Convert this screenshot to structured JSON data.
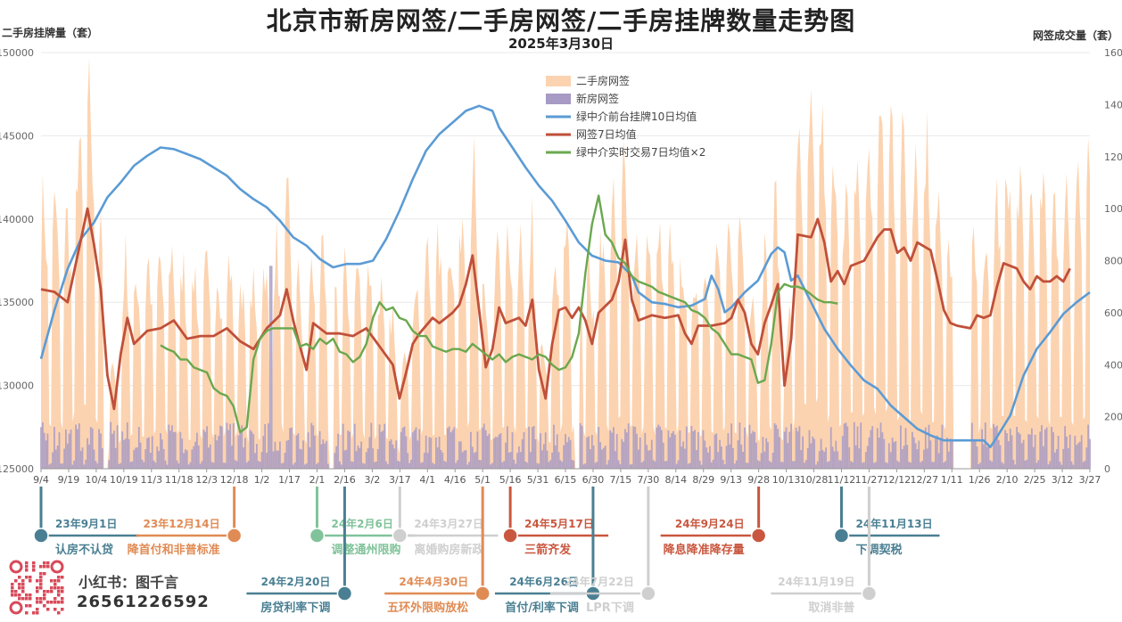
{
  "title": "北京市新房网签/二手房网签/二手房挂牌数量走势图",
  "subtitle": "2025年3月30日",
  "brand": "小红书：图千言",
  "phone": "26561226592",
  "chart_data": {
    "type": "bar",
    "ylabel_left": "二手房挂牌量（套）",
    "ylabel_right": "网签成交量（套）",
    "ylim_left": [
      125000,
      150000
    ],
    "ylim_right": [
      0,
      1600
    ],
    "yticks_left": [
      "125000",
      "130000",
      "135000",
      "140000",
      "145000",
      "150000"
    ],
    "yticks_right": [
      "0",
      "200",
      "400",
      "600",
      "800",
      "1000",
      "1200",
      "1400",
      "1600"
    ],
    "xticks": [
      "9/4",
      "9/19",
      "10/4",
      "10/19",
      "11/3",
      "11/18",
      "12/3",
      "12/18",
      "1/2",
      "1/17",
      "2/1",
      "2/16",
      "3/2",
      "3/17",
      "4/1",
      "4/16",
      "5/1",
      "5/16",
      "5/31",
      "6/15",
      "6/30",
      "7/15",
      "7/30",
      "8/14",
      "8/29",
      "9/13",
      "9/28",
      "10/13",
      "10/28",
      "11/12",
      "11/27",
      "12/12",
      "12/27",
      "1/11",
      "1/26",
      "2/10",
      "2/25",
      "3/12",
      "3/27"
    ],
    "legend": [
      {
        "name": "二手房网签",
        "color": "#fcd3b0",
        "kind": "area"
      },
      {
        "name": "新房网签",
        "color": "#a79ac4",
        "kind": "bar"
      },
      {
        "name": "绿中介前台挂牌10日均值",
        "color": "#5b9bd5",
        "kind": "line"
      },
      {
        "name": "网签7日均值",
        "color": "#c0503a",
        "kind": "line"
      },
      {
        "name": "绿中介实时交易7日均值×2",
        "color": "#6aa84f",
        "kind": "line"
      }
    ],
    "listing_10d_avg": [
      [
        0,
        131600
      ],
      [
        2,
        134500
      ],
      [
        4,
        137000
      ],
      [
        6,
        138800
      ],
      [
        8,
        139800
      ],
      [
        10,
        141300
      ],
      [
        12,
        142200
      ],
      [
        14,
        143200
      ],
      [
        16,
        143800
      ],
      [
        18,
        144300
      ],
      [
        20,
        144200
      ],
      [
        22,
        143900
      ],
      [
        24,
        143600
      ],
      [
        26,
        143100
      ],
      [
        28,
        142600
      ],
      [
        30,
        141800
      ],
      [
        32,
        141200
      ],
      [
        34,
        140700
      ],
      [
        36,
        139900
      ],
      [
        38,
        138900
      ],
      [
        40,
        138400
      ],
      [
        42,
        137600
      ],
      [
        44,
        137100
      ],
      [
        46,
        137300
      ],
      [
        48,
        137300
      ],
      [
        50,
        137500
      ],
      [
        52,
        138800
      ],
      [
        54,
        140500
      ],
      [
        56,
        142400
      ],
      [
        58,
        144100
      ],
      [
        60,
        145100
      ],
      [
        62,
        145800
      ],
      [
        64,
        146500
      ],
      [
        66,
        146800
      ],
      [
        68,
        146500
      ],
      [
        69,
        145500
      ],
      [
        71,
        144300
      ],
      [
        73,
        143100
      ],
      [
        75,
        142000
      ],
      [
        77,
        141100
      ],
      [
        79,
        139900
      ],
      [
        81,
        138600
      ],
      [
        83,
        137800
      ],
      [
        85,
        137500
      ],
      [
        87,
        137400
      ],
      [
        89,
        136600
      ],
      [
        90,
        135600
      ],
      [
        92,
        135000
      ],
      [
        94,
        134900
      ],
      [
        96,
        134700
      ],
      [
        98,
        134800
      ],
      [
        100,
        135200
      ],
      [
        101,
        136600
      ],
      [
        102,
        135800
      ],
      [
        103,
        134400
      ],
      [
        104,
        134700
      ],
      [
        106,
        135600
      ],
      [
        108,
        136300
      ],
      [
        110,
        137900
      ],
      [
        111,
        138300
      ],
      [
        112,
        138000
      ],
      [
        113,
        136300
      ],
      [
        114,
        136600
      ],
      [
        116,
        135000
      ],
      [
        118,
        133400
      ],
      [
        120,
        132200
      ],
      [
        122,
        131200
      ],
      [
        124,
        130300
      ],
      [
        126,
        129800
      ],
      [
        128,
        128800
      ],
      [
        130,
        128100
      ],
      [
        132,
        127400
      ],
      [
        134,
        127000
      ],
      [
        136,
        126700
      ],
      [
        138,
        126700
      ],
      [
        140,
        126700
      ],
      [
        142,
        126700
      ],
      [
        143,
        126300
      ],
      [
        144,
        126900
      ],
      [
        146,
        128200
      ],
      [
        148,
        130600
      ],
      [
        150,
        132200
      ],
      [
        152,
        133200
      ],
      [
        154,
        134300
      ],
      [
        156,
        135000
      ],
      [
        158,
        135600
      ]
    ],
    "signing_7d_avg": [
      [
        0,
        690
      ],
      [
        2,
        680
      ],
      [
        4,
        640
      ],
      [
        6,
        880
      ],
      [
        7,
        1000
      ],
      [
        8,
        860
      ],
      [
        9,
        690
      ],
      [
        10,
        360
      ],
      [
        11,
        230
      ],
      [
        12,
        440
      ],
      [
        13,
        580
      ],
      [
        14,
        480
      ],
      [
        16,
        530
      ],
      [
        18,
        540
      ],
      [
        20,
        570
      ],
      [
        22,
        500
      ],
      [
        24,
        510
      ],
      [
        26,
        510
      ],
      [
        28,
        540
      ],
      [
        30,
        490
      ],
      [
        32,
        460
      ],
      [
        34,
        540
      ],
      [
        36,
        590
      ],
      [
        37,
        690
      ],
      [
        38,
        570
      ],
      [
        39,
        470
      ],
      [
        40,
        380
      ],
      [
        41,
        560
      ],
      [
        43,
        520
      ],
      [
        45,
        520
      ],
      [
        47,
        510
      ],
      [
        49,
        540
      ],
      [
        51,
        470
      ],
      [
        53,
        400
      ],
      [
        54,
        270
      ],
      [
        55,
        370
      ],
      [
        56,
        480
      ],
      [
        57,
        520
      ],
      [
        59,
        580
      ],
      [
        60,
        560
      ],
      [
        62,
        600
      ],
      [
        63,
        630
      ],
      [
        64,
        710
      ],
      [
        65,
        820
      ],
      [
        66,
        610
      ],
      [
        67,
        390
      ],
      [
        68,
        460
      ],
      [
        69,
        620
      ],
      [
        70,
        560
      ],
      [
        72,
        580
      ],
      [
        73,
        550
      ],
      [
        74,
        650
      ],
      [
        75,
        380
      ],
      [
        76,
        270
      ],
      [
        77,
        480
      ],
      [
        78,
        610
      ],
      [
        79,
        620
      ],
      [
        80,
        580
      ],
      [
        81,
        620
      ],
      [
        82,
        570
      ],
      [
        83,
        480
      ],
      [
        84,
        600
      ],
      [
        86,
        650
      ],
      [
        87,
        720
      ],
      [
        88,
        880
      ],
      [
        89,
        650
      ],
      [
        90,
        570
      ],
      [
        92,
        590
      ],
      [
        94,
        580
      ],
      [
        96,
        590
      ],
      [
        97,
        520
      ],
      [
        98,
        480
      ],
      [
        99,
        550
      ],
      [
        101,
        550
      ],
      [
        103,
        560
      ],
      [
        104,
        580
      ],
      [
        105,
        650
      ],
      [
        106,
        600
      ],
      [
        107,
        480
      ],
      [
        108,
        440
      ],
      [
        109,
        560
      ],
      [
        110,
        630
      ],
      [
        111,
        710
      ],
      [
        112,
        320
      ],
      [
        113,
        500
      ],
      [
        114,
        900
      ],
      [
        116,
        890
      ],
      [
        117,
        960
      ],
      [
        118,
        870
      ],
      [
        119,
        720
      ],
      [
        120,
        760
      ],
      [
        121,
        710
      ],
      [
        122,
        780
      ],
      [
        124,
        800
      ],
      [
        126,
        890
      ],
      [
        127,
        920
      ],
      [
        128,
        920
      ],
      [
        129,
        830
      ],
      [
        130,
        850
      ],
      [
        131,
        800
      ],
      [
        132,
        870
      ],
      [
        134,
        840
      ],
      [
        135,
        730
      ],
      [
        136,
        610
      ],
      [
        137,
        560
      ],
      [
        138,
        550
      ],
      [
        140,
        540
      ],
      [
        141,
        590
      ],
      [
        142,
        580
      ],
      [
        143,
        590
      ],
      [
        144,
        700
      ],
      [
        145,
        790
      ],
      [
        146,
        780
      ],
      [
        147,
        770
      ],
      [
        148,
        720
      ],
      [
        149,
        690
      ],
      [
        150,
        740
      ],
      [
        151,
        720
      ],
      [
        152,
        720
      ],
      [
        153,
        740
      ],
      [
        154,
        720
      ],
      [
        155,
        770
      ]
    ],
    "green_7d_avg_x2": [
      [
        18,
        475
      ],
      [
        19,
        460
      ],
      [
        20,
        450
      ],
      [
        21,
        420
      ],
      [
        22,
        420
      ],
      [
        23,
        390
      ],
      [
        24,
        380
      ],
      [
        25,
        370
      ],
      [
        26,
        310
      ],
      [
        27,
        290
      ],
      [
        28,
        280
      ],
      [
        29,
        240
      ],
      [
        30,
        140
      ],
      [
        31,
        160
      ],
      [
        32,
        420
      ],
      [
        33,
        500
      ],
      [
        34,
        530
      ],
      [
        35,
        540
      ],
      [
        36,
        540
      ],
      [
        37,
        540
      ],
      [
        38,
        540
      ],
      [
        39,
        470
      ],
      [
        40,
        480
      ],
      [
        41,
        460
      ],
      [
        42,
        500
      ],
      [
        43,
        480
      ],
      [
        44,
        500
      ],
      [
        45,
        450
      ],
      [
        46,
        440
      ],
      [
        47,
        410
      ],
      [
        48,
        430
      ],
      [
        49,
        480
      ],
      [
        50,
        580
      ],
      [
        51,
        640
      ],
      [
        52,
        610
      ],
      [
        53,
        620
      ],
      [
        54,
        580
      ],
      [
        55,
        570
      ],
      [
        56,
        530
      ],
      [
        57,
        510
      ],
      [
        58,
        510
      ],
      [
        59,
        470
      ],
      [
        60,
        460
      ],
      [
        61,
        450
      ],
      [
        62,
        460
      ],
      [
        63,
        460
      ],
      [
        64,
        450
      ],
      [
        65,
        480
      ],
      [
        66,
        460
      ],
      [
        67,
        440
      ],
      [
        68,
        420
      ],
      [
        69,
        440
      ],
      [
        70,
        410
      ],
      [
        71,
        430
      ],
      [
        72,
        440
      ],
      [
        73,
        430
      ],
      [
        74,
        420
      ],
      [
        75,
        440
      ],
      [
        76,
        430
      ],
      [
        77,
        400
      ],
      [
        78,
        380
      ],
      [
        79,
        390
      ],
      [
        80,
        430
      ],
      [
        81,
        520
      ],
      [
        82,
        750
      ],
      [
        83,
        940
      ],
      [
        84,
        1050
      ],
      [
        85,
        900
      ],
      [
        86,
        870
      ],
      [
        87,
        810
      ],
      [
        88,
        790
      ],
      [
        89,
        740
      ],
      [
        90,
        720
      ],
      [
        91,
        710
      ],
      [
        92,
        700
      ],
      [
        93,
        680
      ],
      [
        94,
        670
      ],
      [
        95,
        660
      ],
      [
        96,
        650
      ],
      [
        97,
        640
      ],
      [
        98,
        610
      ],
      [
        99,
        600
      ],
      [
        100,
        580
      ],
      [
        101,
        540
      ],
      [
        102,
        520
      ],
      [
        103,
        480
      ],
      [
        104,
        440
      ],
      [
        105,
        440
      ],
      [
        106,
        430
      ],
      [
        107,
        420
      ],
      [
        108,
        330
      ],
      [
        109,
        340
      ],
      [
        110,
        480
      ],
      [
        111,
        680
      ],
      [
        112,
        710
      ],
      [
        113,
        700
      ],
      [
        114,
        700
      ],
      [
        115,
        690
      ],
      [
        116,
        670
      ],
      [
        117,
        650
      ],
      [
        118,
        640
      ],
      [
        119,
        640
      ],
      [
        120,
        635
      ]
    ],
    "events_top": [
      {
        "date": "23年9月1日",
        "label": "认房不认贷",
        "color": "#4a7f93",
        "x_index": 0
      },
      {
        "date": "23年12月14日",
        "label": "降首付和非普标准",
        "color": "#e08b54",
        "x_index": 7
      },
      {
        "date": "24年2月6日",
        "label": "调整通州限购",
        "color": "#80c39a",
        "x_index": 10
      },
      {
        "date": "24年3月27日",
        "label": "离婚购房新政",
        "color": "#cfcfcf",
        "x_index": 13
      },
      {
        "date": "24年5月17日",
        "label": "三箭齐发",
        "color": "#c9573f",
        "x_index": 17
      },
      {
        "date": "24年9月24日",
        "label": "降息降准降存量",
        "color": "#c9573f",
        "x_index": 26
      },
      {
        "date": "24年11月13日",
        "label": "下调契税",
        "color": "#4a7f93",
        "x_index": 29
      }
    ],
    "events_bottom": [
      {
        "date": "24年2月20日",
        "label": "房贷利率下调",
        "color": "#4a7f93",
        "x_index": 11
      },
      {
        "date": "24年4月30日",
        "label": "五环外限购放松",
        "color": "#e08b54",
        "x_index": 16
      },
      {
        "date": "24年6月26日",
        "label": "首付/利率下调",
        "color": "#4a7f93",
        "x_index": 20
      },
      {
        "date": "24年7月22日",
        "label": "LPR下调",
        "color": "#cfcfcf",
        "x_index": 22
      },
      {
        "date": "24年11月19日",
        "label": "取消非普",
        "color": "#cfcfcf",
        "x_index": 30
      }
    ]
  }
}
